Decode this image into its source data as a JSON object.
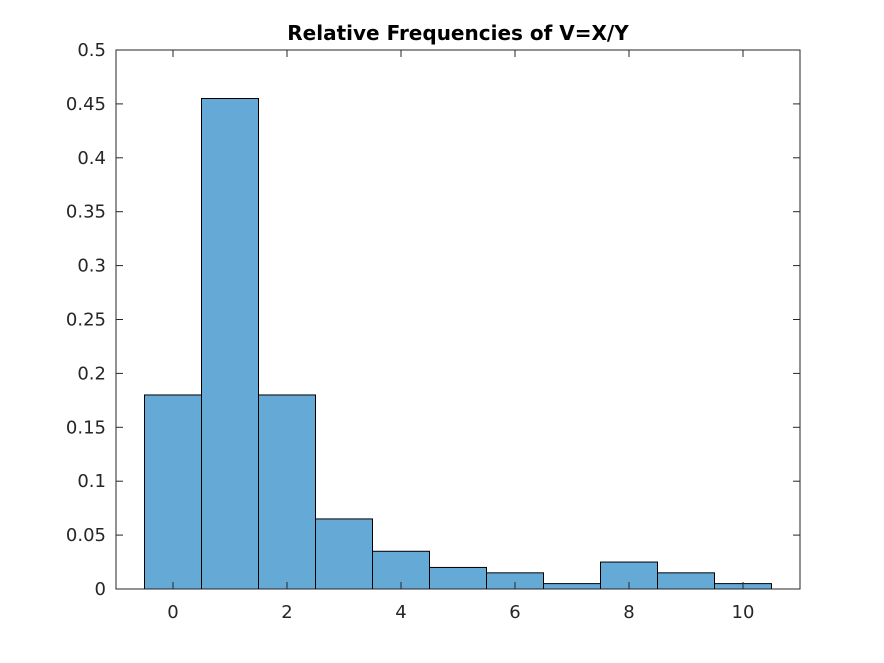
{
  "chart_data": {
    "type": "bar",
    "title": "Relative Frequencies of V=X/Y",
    "xlabel": "",
    "ylabel": "",
    "bin_width": 1,
    "bins": [
      {
        "center": 0,
        "value": 0.18
      },
      {
        "center": 1,
        "value": 0.455
      },
      {
        "center": 2,
        "value": 0.18
      },
      {
        "center": 3,
        "value": 0.065
      },
      {
        "center": 4,
        "value": 0.035
      },
      {
        "center": 5,
        "value": 0.02
      },
      {
        "center": 6,
        "value": 0.015
      },
      {
        "center": 7,
        "value": 0.005
      },
      {
        "center": 8,
        "value": 0.025
      },
      {
        "center": 9,
        "value": 0.015
      },
      {
        "center": 10,
        "value": 0.005
      }
    ],
    "xlim": [
      -1,
      11
    ],
    "ylim": [
      0,
      0.5
    ],
    "x_ticks": [
      0,
      2,
      4,
      6,
      8,
      10
    ],
    "x_tick_labels": [
      "0",
      "2",
      "4",
      "6",
      "8",
      "10"
    ],
    "y_ticks": [
      0,
      0.05,
      0.1,
      0.15,
      0.2,
      0.25,
      0.3,
      0.35,
      0.4,
      0.45,
      0.5
    ],
    "y_tick_labels": [
      "0",
      "0.05",
      "0.1",
      "0.15",
      "0.2",
      "0.25",
      "0.3",
      "0.35",
      "0.4",
      "0.45",
      "0.5"
    ],
    "grid": false,
    "colors": {
      "bar_fill": "#65a9d7",
      "bar_edge": "#000000",
      "axis": "#262626"
    }
  }
}
